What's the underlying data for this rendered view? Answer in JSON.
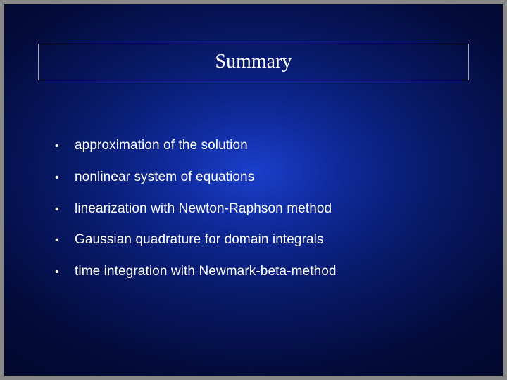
{
  "slide": {
    "title": "Summary",
    "title_font": "Times New Roman",
    "title_fontsize": 28,
    "title_color": "#ffffff",
    "title_border_color": "#aaaaaa",
    "background_gradient": {
      "type": "radial",
      "center_color": "#1a3fcc",
      "mid_color": "#081a6a",
      "edge_color": "#010520"
    },
    "bullets": [
      "approximation of the solution",
      "nonlinear system of equations",
      "linearization with Newton-Raphson method",
      "Gaussian quadrature for domain integrals",
      "time integration with Newmark-beta-method"
    ],
    "bullet_font": "Arial",
    "bullet_fontsize": 19,
    "bullet_color": "#ffffff",
    "bullet_marker": "•",
    "frame_padding_color": "#888888",
    "slide_width": 720,
    "slide_height": 540
  }
}
